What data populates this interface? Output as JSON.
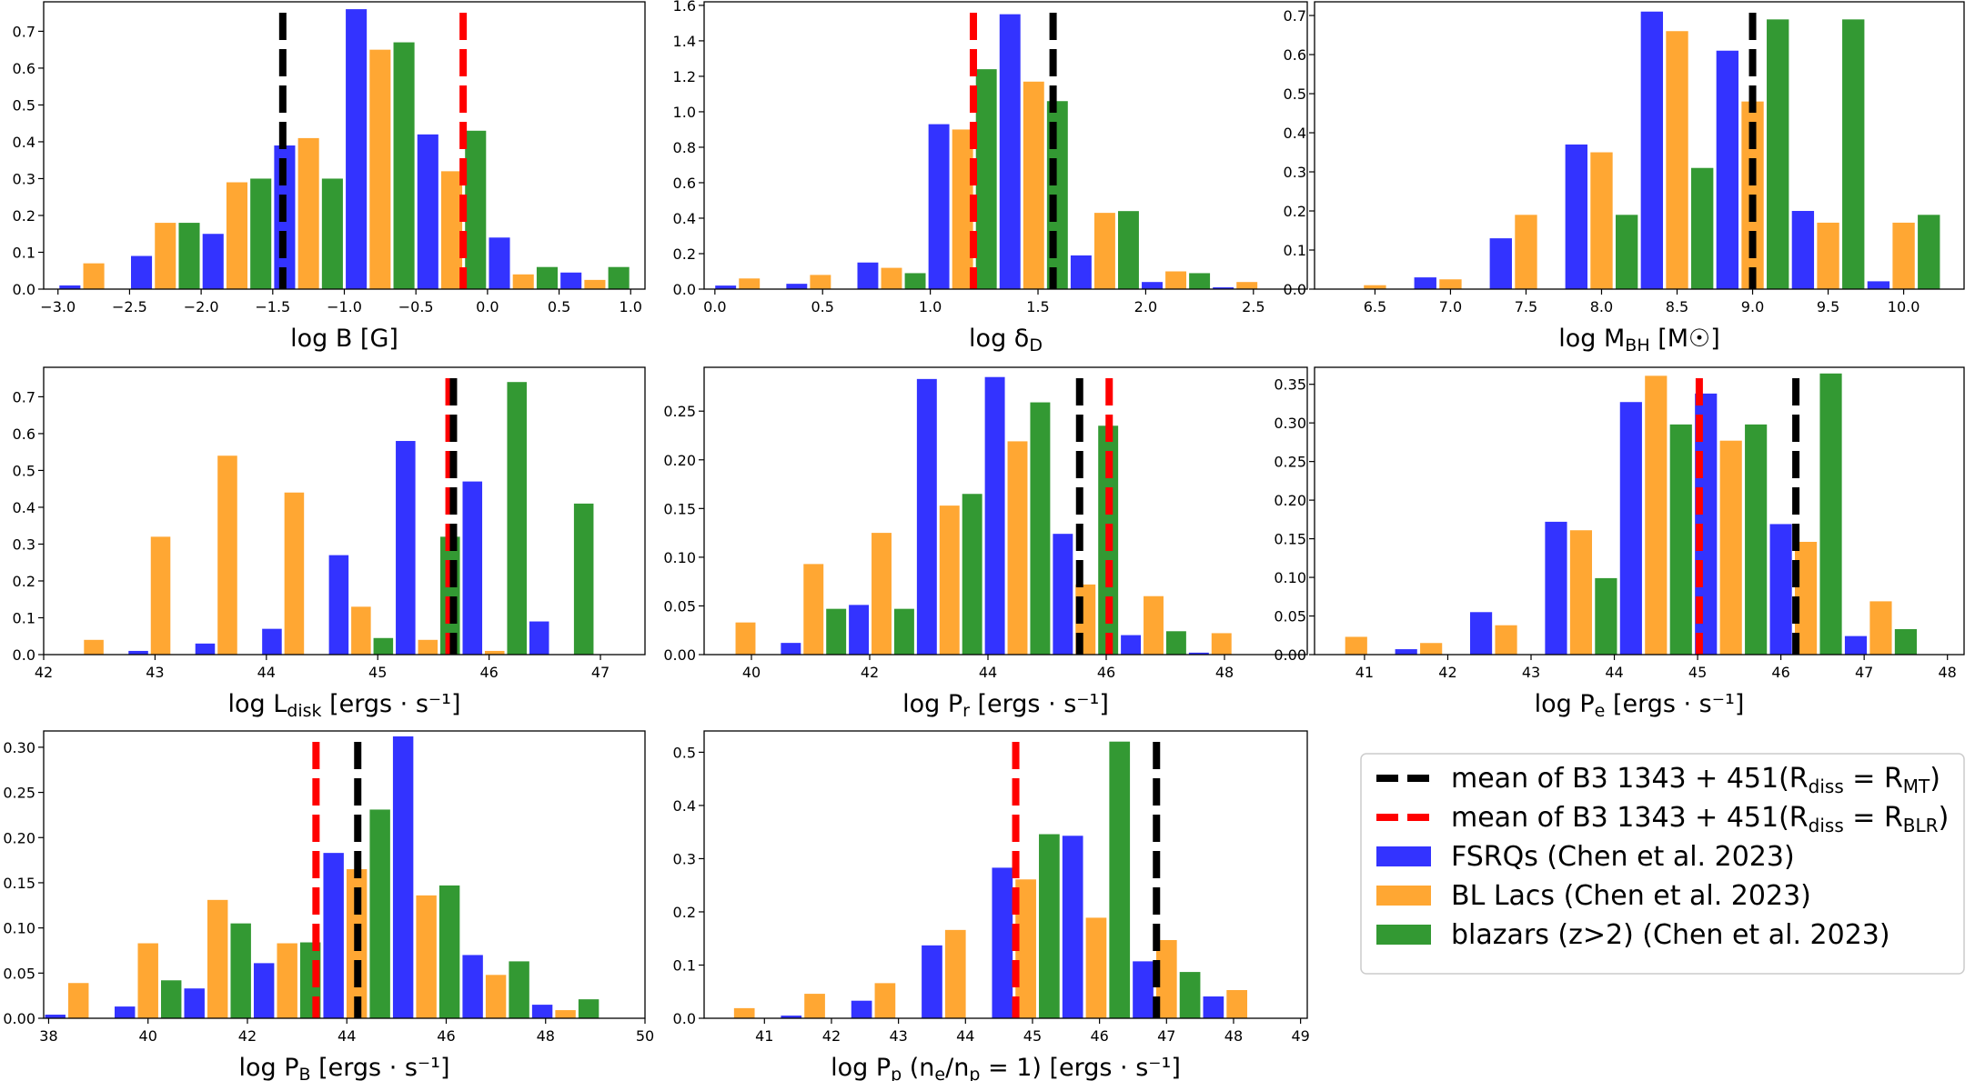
{
  "colors": {
    "fsrq": "#3333ff",
    "bllac": "#ffa733",
    "highz": "#339933",
    "mean_mt": "#000000",
    "mean_blr": "#ff0000"
  },
  "legend": {
    "placement": "right of bottom row",
    "items": [
      {
        "key": "mean_mt",
        "style": "dashed",
        "text": "mean of B3 1343 + 451(R",
        "sub1": "diss",
        "mid": " = R",
        "sub2": "MT",
        "end": ")"
      },
      {
        "key": "mean_blr",
        "style": "dashed",
        "text": "mean of B3 1343 + 451(R",
        "sub1": "diss",
        "mid": " = R",
        "sub2": "BLR",
        "end": ")"
      },
      {
        "key": "fsrq",
        "style": "patch",
        "text": "FSRQs (Chen et al. 2023)",
        "sub1": "",
        "mid": "",
        "sub2": "",
        "end": ""
      },
      {
        "key": "bllac",
        "style": "patch",
        "text": "BL Lacs (Chen et al. 2023)",
        "sub1": "",
        "mid": "",
        "sub2": "",
        "end": ""
      },
      {
        "key": "highz",
        "style": "patch",
        "text": "blazars (z>2) (Chen et al. 2023)",
        "sub1": "",
        "mid": "",
        "sub2": "",
        "end": ""
      }
    ]
  },
  "chart_data": [
    {
      "type": "bar",
      "id": "logB",
      "xlabel": {
        "main": "log B [G]",
        "sub": "",
        "post": ""
      },
      "xlim": [
        -3.1,
        1.1
      ],
      "ylim": [
        0,
        0.78
      ],
      "xticks": [
        -3.0,
        -2.5,
        -2.0,
        -1.5,
        -1.0,
        -0.5,
        0.0,
        0.5,
        1.0
      ],
      "xtick_labels": [
        "−3.0",
        "−2.5",
        "−2.0",
        "−1.5",
        "−1.0",
        "−0.5",
        "0.0",
        "0.5",
        "1.0"
      ],
      "yticks": [
        0.0,
        0.1,
        0.2,
        0.3,
        0.4,
        0.5,
        0.6,
        0.7
      ],
      "ytick_labels": [
        "0.0",
        "0.1",
        "0.2",
        "0.3",
        "0.4",
        "0.5",
        "0.6",
        "0.7"
      ],
      "bin_width": 0.5,
      "bins": [
        -2.75,
        -2.25,
        -1.75,
        -1.25,
        -0.75,
        -0.25,
        0.25,
        0.75
      ],
      "series": [
        {
          "key": "fsrq",
          "values": [
            0.01,
            0.09,
            0.15,
            0.39,
            0.76,
            0.42,
            0.14,
            0.045
          ]
        },
        {
          "key": "bllac",
          "values": [
            0.07,
            0.18,
            0.29,
            0.41,
            0.65,
            0.32,
            0.04,
            0.025
          ]
        },
        {
          "key": "highz",
          "values": [
            0.0,
            0.18,
            0.3,
            0.3,
            0.67,
            0.43,
            0.06,
            0.06
          ]
        }
      ],
      "means": {
        "mt": -1.43,
        "blr": -0.17
      }
    },
    {
      "type": "bar",
      "id": "logDelta",
      "xlabel": {
        "main": "log δ",
        "sub": "D",
        "post": ""
      },
      "xlim": [
        -0.05,
        2.75
      ],
      "ylim": [
        0,
        1.62
      ],
      "xticks": [
        0.0,
        0.5,
        1.0,
        1.5,
        2.0,
        2.5
      ],
      "xtick_labels": [
        "0.0",
        "0.5",
        "1.0",
        "1.5",
        "2.0",
        "2.5"
      ],
      "yticks": [
        0.0,
        0.2,
        0.4,
        0.6,
        0.8,
        1.0,
        1.2,
        1.4,
        1.6
      ],
      "ytick_labels": [
        "0.0",
        "0.2",
        "0.4",
        "0.6",
        "0.8",
        "1.0",
        "1.2",
        "1.4",
        "1.6"
      ],
      "bin_width": 0.33,
      "bins": [
        0.16,
        0.49,
        0.82,
        1.15,
        1.48,
        1.81,
        2.14,
        2.47
      ],
      "series": [
        {
          "key": "fsrq",
          "values": [
            0.02,
            0.03,
            0.15,
            0.93,
            1.55,
            0.19,
            0.04,
            0.01
          ]
        },
        {
          "key": "bllac",
          "values": [
            0.06,
            0.08,
            0.12,
            0.9,
            1.17,
            0.43,
            0.1,
            0.04
          ]
        },
        {
          "key": "highz",
          "values": [
            0.0,
            0.0,
            0.09,
            1.24,
            1.06,
            0.44,
            0.09,
            0.0
          ]
        }
      ],
      "means": {
        "mt": 1.57,
        "blr": 1.2
      }
    },
    {
      "type": "bar",
      "id": "logMBH",
      "xlabel": {
        "main": "log M",
        "sub": "BH",
        "post": " [M☉]"
      },
      "xlim": [
        6.1,
        10.4
      ],
      "ylim": [
        0,
        0.735
      ],
      "xticks": [
        6.5,
        7.0,
        7.5,
        8.0,
        8.5,
        9.0,
        9.5,
        10.0
      ],
      "xtick_labels": [
        "6.5",
        "7.0",
        "7.5",
        "8.0",
        "8.5",
        "9.0",
        "9.5",
        "10.0"
      ],
      "yticks": [
        0.0,
        0.1,
        0.2,
        0.3,
        0.4,
        0.5,
        0.6,
        0.7
      ],
      "ytick_labels": [
        "0.0",
        "0.1",
        "0.2",
        "0.3",
        "0.4",
        "0.5",
        "0.6",
        "0.7"
      ],
      "bin_width": 0.5,
      "bins": [
        6.5,
        7.0,
        7.5,
        8.0,
        8.5,
        9.0,
        9.5,
        10.0
      ],
      "series": [
        {
          "key": "fsrq",
          "values": [
            0.0,
            0.03,
            0.13,
            0.37,
            0.71,
            0.61,
            0.2,
            0.02
          ]
        },
        {
          "key": "bllac",
          "values": [
            0.01,
            0.025,
            0.19,
            0.35,
            0.66,
            0.48,
            0.17,
            0.17
          ]
        },
        {
          "key": "highz",
          "values": [
            0.0,
            0.0,
            0.0,
            0.19,
            0.31,
            0.69,
            0.69,
            0.19
          ]
        }
      ],
      "means": {
        "mt": 9.0,
        "blr": 9.0
      }
    },
    {
      "type": "bar",
      "id": "logLdisk",
      "xlabel": {
        "main": "log L",
        "sub": "disk",
        "post": " [ergs · s⁻¹]"
      },
      "xlim": [
        42.0,
        47.4
      ],
      "ylim": [
        0,
        0.78
      ],
      "xticks": [
        42,
        43,
        44,
        45,
        46,
        47
      ],
      "xtick_labels": [
        "42",
        "43",
        "44",
        "45",
        "46",
        "47"
      ],
      "yticks": [
        0.0,
        0.1,
        0.2,
        0.3,
        0.4,
        0.5,
        0.6,
        0.7
      ],
      "ytick_labels": [
        "0.0",
        "0.1",
        "0.2",
        "0.3",
        "0.4",
        "0.5",
        "0.6",
        "0.7"
      ],
      "bin_width": 0.6,
      "bins": [
        42.45,
        43.05,
        43.65,
        44.25,
        44.85,
        45.45,
        46.05,
        46.65
      ],
      "series": [
        {
          "key": "fsrq",
          "values": [
            0.0,
            0.01,
            0.03,
            0.07,
            0.27,
            0.58,
            0.47,
            0.09
          ]
        },
        {
          "key": "bllac",
          "values": [
            0.04,
            0.32,
            0.54,
            0.44,
            0.13,
            0.04,
            0.01,
            0.0
          ]
        },
        {
          "key": "highz",
          "values": [
            0.0,
            0.0,
            0.0,
            0.0,
            0.045,
            0.32,
            0.74,
            0.41
          ]
        }
      ],
      "means": {
        "mt": 45.68,
        "blr": 45.64
      }
    },
    {
      "type": "bar",
      "id": "logPr",
      "xlabel": {
        "main": "log P",
        "sub": "r",
        "post": " [ergs · s⁻¹]"
      },
      "xlim": [
        39.2,
        49.4
      ],
      "ylim": [
        0,
        0.295
      ],
      "xticks": [
        40,
        42,
        44,
        46,
        48
      ],
      "xtick_labels": [
        "40",
        "42",
        "44",
        "46",
        "48"
      ],
      "yticks": [
        0.0,
        0.05,
        0.1,
        0.15,
        0.2,
        0.25
      ],
      "ytick_labels": [
        "0.00",
        "0.05",
        "0.10",
        "0.15",
        "0.20",
        "0.25"
      ],
      "bin_width": 1.15,
      "bins": [
        39.9,
        41.05,
        42.2,
        43.35,
        44.5,
        45.65,
        46.8,
        47.95
      ],
      "series": [
        {
          "key": "fsrq",
          "values": [
            0.0,
            0.012,
            0.051,
            0.283,
            0.285,
            0.124,
            0.02,
            0.002
          ]
        },
        {
          "key": "bllac",
          "values": [
            0.033,
            0.093,
            0.125,
            0.153,
            0.219,
            0.072,
            0.06,
            0.022
          ]
        },
        {
          "key": "highz",
          "values": [
            0.0,
            0.047,
            0.047,
            0.165,
            0.259,
            0.235,
            0.024,
            0.0
          ]
        }
      ],
      "means": {
        "mt": 45.55,
        "blr": 46.05
      }
    },
    {
      "type": "bar",
      "id": "logPe",
      "xlabel": {
        "main": "log P",
        "sub": "e",
        "post": " [ergs · s⁻¹]"
      },
      "xlim": [
        40.4,
        48.2
      ],
      "ylim": [
        0,
        0.372
      ],
      "xticks": [
        41,
        42,
        43,
        44,
        45,
        46,
        47,
        48
      ],
      "xtick_labels": [
        "41",
        "42",
        "43",
        "44",
        "45",
        "46",
        "47",
        "48"
      ],
      "yticks": [
        0.0,
        0.05,
        0.1,
        0.15,
        0.2,
        0.25,
        0.3,
        0.35
      ],
      "ytick_labels": [
        "0.00",
        "0.05",
        "0.10",
        "0.15",
        "0.20",
        "0.25",
        "0.30",
        "0.35"
      ],
      "bin_width": 0.9,
      "bins": [
        40.9,
        41.8,
        42.7,
        43.6,
        44.5,
        45.4,
        46.3,
        47.2
      ],
      "series": [
        {
          "key": "fsrq",
          "values": [
            0.0,
            0.007,
            0.055,
            0.172,
            0.327,
            0.338,
            0.169,
            0.024
          ]
        },
        {
          "key": "bllac",
          "values": [
            0.023,
            0.015,
            0.038,
            0.161,
            0.361,
            0.277,
            0.146,
            0.069
          ]
        },
        {
          "key": "highz",
          "values": [
            0.0,
            0.0,
            0.0,
            0.099,
            0.298,
            0.298,
            0.364,
            0.033
          ]
        }
      ],
      "means": {
        "mt": 46.18,
        "blr": 45.02
      }
    },
    {
      "type": "bar",
      "id": "logPB",
      "xlabel": {
        "main": "log P",
        "sub": "B",
        "post": " [ergs · s⁻¹]"
      },
      "xlim": [
        37.9,
        50.0
      ],
      "ylim": [
        0,
        0.318
      ],
      "xticks": [
        38,
        40,
        42,
        44,
        46,
        48,
        50
      ],
      "xtick_labels": [
        "38",
        "40",
        "42",
        "44",
        "46",
        "48",
        "50"
      ],
      "yticks": [
        0.0,
        0.05,
        0.1,
        0.15,
        0.2,
        0.25,
        0.3
      ],
      "ytick_labels": [
        "0.00",
        "0.05",
        "0.10",
        "0.15",
        "0.20",
        "0.25",
        "0.30"
      ],
      "bin_width": 1.4,
      "bins": [
        38.6,
        40.0,
        41.4,
        42.8,
        44.2,
        45.6,
        47.0,
        48.4
      ],
      "series": [
        {
          "key": "fsrq",
          "values": [
            0.004,
            0.013,
            0.033,
            0.061,
            0.183,
            0.312,
            0.07,
            0.015
          ]
        },
        {
          "key": "bllac",
          "values": [
            0.039,
            0.083,
            0.131,
            0.083,
            0.165,
            0.136,
            0.048,
            0.009
          ]
        },
        {
          "key": "highz",
          "values": [
            0.0,
            0.042,
            0.105,
            0.084,
            0.231,
            0.147,
            0.063,
            0.021
          ]
        }
      ],
      "means": {
        "mt": 44.22,
        "blr": 43.38
      }
    },
    {
      "type": "bar",
      "id": "logPp",
      "xlabel": {
        "main": "log P",
        "sub": "p",
        "post": " (n",
        "sub2": "e",
        "post2": "/n",
        "sub3": "p",
        "post3": " = 1) [ergs · s⁻¹]"
      },
      "xlim": [
        40.1,
        49.1
      ],
      "ylim": [
        0,
        0.54
      ],
      "xticks": [
        41,
        42,
        43,
        44,
        45,
        46,
        47,
        48,
        49
      ],
      "xtick_labels": [
        "41",
        "42",
        "43",
        "44",
        "45",
        "46",
        "47",
        "48",
        "49"
      ],
      "yticks": [
        0.0,
        0.1,
        0.2,
        0.3,
        0.4,
        0.5
      ],
      "ytick_labels": [
        "0.0",
        "0.1",
        "0.2",
        "0.3",
        "0.4",
        "0.5"
      ],
      "bin_width": 1.05,
      "bins": [
        40.7,
        41.75,
        42.8,
        43.85,
        44.9,
        45.95,
        47.0,
        48.05
      ],
      "series": [
        {
          "key": "fsrq",
          "values": [
            0.0,
            0.005,
            0.033,
            0.137,
            0.283,
            0.343,
            0.107,
            0.041
          ]
        },
        {
          "key": "bllac",
          "values": [
            0.019,
            0.046,
            0.066,
            0.166,
            0.261,
            0.189,
            0.147,
            0.053
          ]
        },
        {
          "key": "highz",
          "values": [
            0.0,
            0.0,
            0.0,
            0.0,
            0.346,
            0.52,
            0.087,
            0.0
          ]
        }
      ],
      "means": {
        "mt": 46.85,
        "blr": 44.75
      }
    }
  ]
}
